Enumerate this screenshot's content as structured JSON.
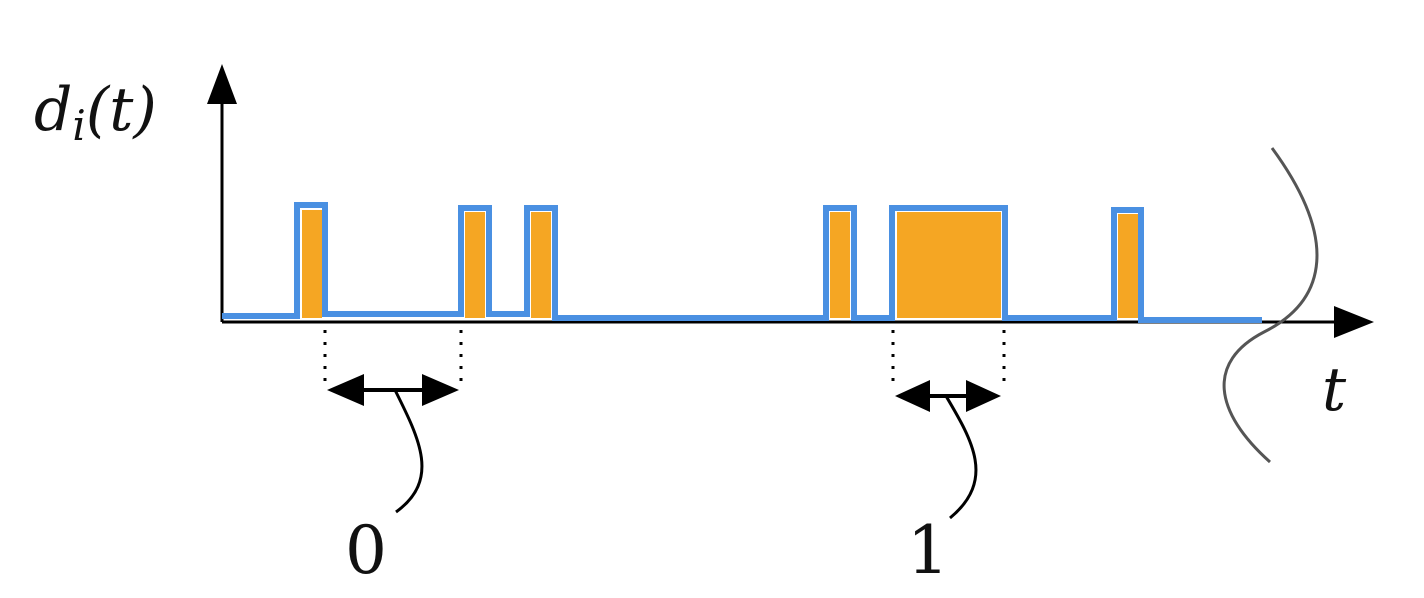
{
  "labels": {
    "y_axis": {
      "main": "d",
      "sub": "i",
      "arg": "(t)"
    },
    "x_axis": "t",
    "interval_short": "0",
    "interval_long": "1"
  },
  "colors": {
    "pulse_fill": "#F5A623",
    "pulse_outline": "#4A90E2",
    "axis": "#000000",
    "break_mark": "#555555"
  }
}
